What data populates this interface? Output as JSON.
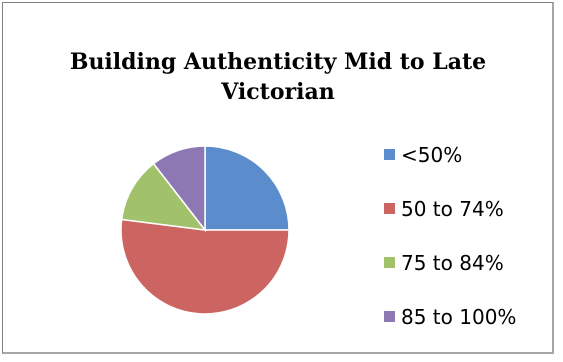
{
  "chart_data": {
    "type": "pie",
    "title_lines": [
      "Building Authenticity Mid to Late",
      "Victorian"
    ],
    "categories": [
      "<50%",
      "50 to 74%",
      "75 to 84%",
      "85 to 100%"
    ],
    "values": [
      25,
      52,
      12.5,
      10.5
    ],
    "colors": [
      "#5B8CCB",
      "#CC6561",
      "#A1C26B",
      "#8E78B3"
    ],
    "start_angle_deg": 0,
    "direction": "clockwise",
    "legend_position": "right"
  }
}
